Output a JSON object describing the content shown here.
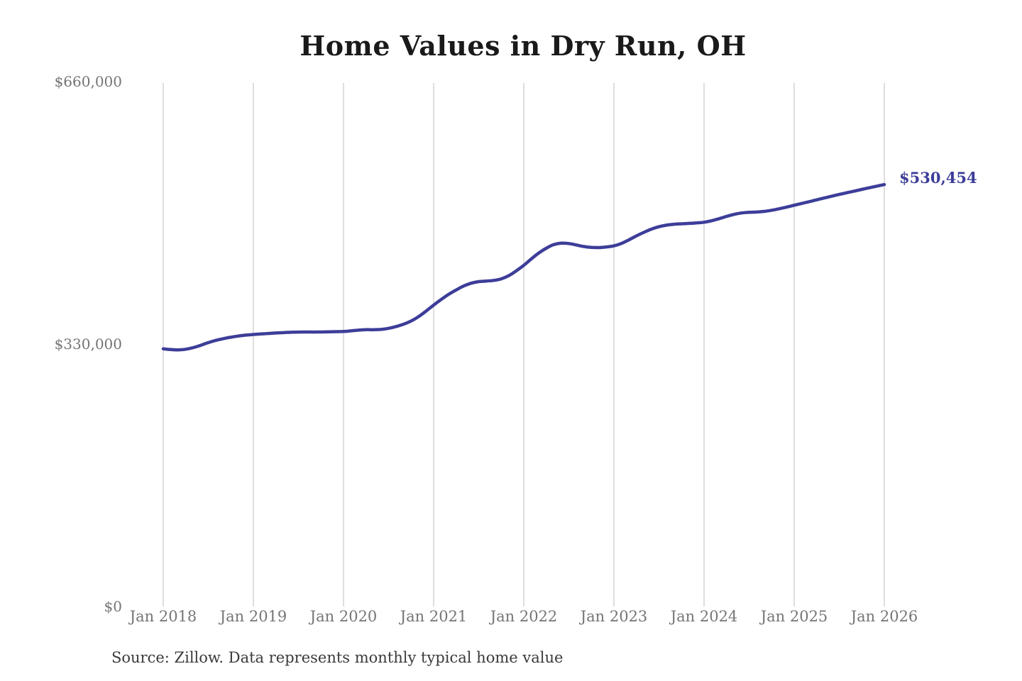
{
  "chart_data": {
    "type": "line",
    "title": "Home Values in Dry Run, OH",
    "source_note": "Source: Zillow. Data represents monthly typical home value",
    "series_name": "Monthly typical home value",
    "x_start": "Jan 2018",
    "x_end": "Jan 2026",
    "x_interval": "monthly",
    "x_tick_labels": [
      "Jan 2018",
      "Jan 2019",
      "Jan 2020",
      "Jan 2021",
      "Jan 2022",
      "Jan 2023",
      "Jan 2024",
      "Jan 2025",
      "Jan 2026"
    ],
    "y_ticks": [
      {
        "label": "$0",
        "value": 0
      },
      {
        "label": "$330,000",
        "value": 330000
      },
      {
        "label": "$660,000",
        "value": 660000
      }
    ],
    "ylim": [
      0,
      660000
    ],
    "grid": "vertical-only",
    "legend": "none",
    "end_label": "$530,454",
    "end_value": 530454,
    "values": [
      324000,
      323000,
      322700,
      323500,
      325500,
      328500,
      331800,
      334600,
      336800,
      338600,
      340100,
      341200,
      342000,
      342700,
      343300,
      343900,
      344400,
      344800,
      345100,
      345200,
      345100,
      345200,
      345400,
      345600,
      345800,
      346600,
      347500,
      348100,
      348000,
      348400,
      349800,
      352000,
      355000,
      359000,
      364500,
      371500,
      379000,
      386000,
      392500,
      398000,
      403000,
      406500,
      408500,
      409200,
      410000,
      412000,
      416000,
      422000,
      429000,
      437000,
      444500,
      450500,
      455000,
      456800,
      456400,
      454600,
      452600,
      451500,
      451300,
      452100,
      453400,
      456500,
      461000,
      466000,
      470500,
      474500,
      477500,
      479500,
      480600,
      481200,
      481700,
      482300,
      483100,
      485000,
      487600,
      490500,
      493000,
      494800,
      495600,
      496000,
      496800,
      498200,
      500100,
      502200,
      504500,
      506800,
      509000,
      511300,
      513600,
      515900,
      518100,
      520200,
      522300,
      524400,
      526500,
      528500,
      530454
    ],
    "colors": {
      "line": "#3d3d99",
      "grid": "#cccccc",
      "title": "#1a1a1a",
      "axis_labels": "#757575",
      "source": "#3a3a3a",
      "background": "#ffffff"
    }
  }
}
